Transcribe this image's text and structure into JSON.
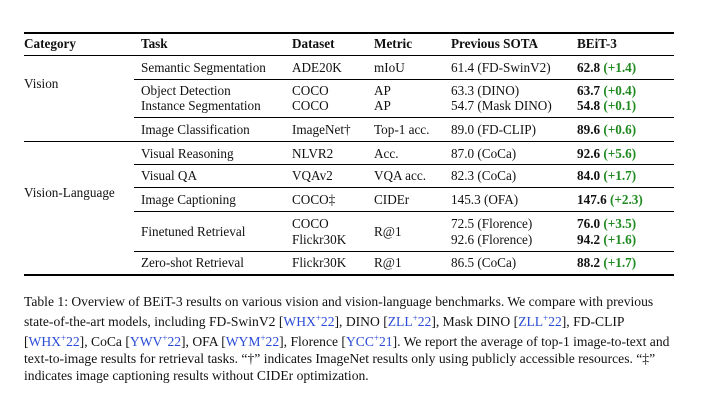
{
  "table": {
    "headers": {
      "category": "Category",
      "task": "Task",
      "dataset": "Dataset",
      "metric": "Metric",
      "sota": "Previous SOTA",
      "beit": "BEiT-3"
    },
    "categories": {
      "vision": "Vision",
      "vision_language": "Vision-Language"
    },
    "rows": [
      {
        "task": "Semantic Segmentation",
        "dataset": "ADE20K",
        "metric": "mIoU",
        "sota": "61.4 (FD-SwinV2)",
        "score": "62.8",
        "gain": "(+1.4)"
      },
      {
        "task": "Object Detection",
        "dataset": "COCO",
        "metric": "AP",
        "sota": "63.3 (DINO)",
        "score": "63.7",
        "gain": "(+0.4)"
      },
      {
        "task": "Instance Segmentation",
        "dataset": "COCO",
        "metric": "AP",
        "sota": "54.7 (Mask DINO)",
        "score": "54.8",
        "gain": "(+0.1)"
      },
      {
        "task": "Image Classification",
        "dataset": "ImageNet†",
        "metric": "Top-1 acc.",
        "sota": "89.0 (FD-CLIP)",
        "score": "89.6",
        "gain": "(+0.6)"
      },
      {
        "task": "Visual Reasoning",
        "dataset": "NLVR2",
        "metric": "Acc.",
        "sota": "87.0 (CoCa)",
        "score": "92.6",
        "gain": "(+5.6)"
      },
      {
        "task": "Visual QA",
        "dataset": "VQAv2",
        "metric": "VQA acc.",
        "sota": "82.3 (CoCa)",
        "score": "84.0",
        "gain": "(+1.7)"
      },
      {
        "task": "Image Captioning",
        "dataset": "COCO‡",
        "metric": "CIDEr",
        "sota": "145.3 (OFA)",
        "score": "147.6",
        "gain": "(+2.3)"
      },
      {
        "task": "Finetuned Retrieval",
        "dataset": "COCO",
        "metric": "R@1",
        "sota": "72.5 (Florence)",
        "score": "76.0",
        "gain": "(+3.5)"
      },
      {
        "task": "",
        "dataset": "Flickr30K",
        "metric": "",
        "sota": "92.6 (Florence)",
        "score": "94.2",
        "gain": "(+1.6)"
      },
      {
        "task": "Zero-shot Retrieval",
        "dataset": "Flickr30K",
        "metric": "R@1",
        "sota": "86.5 (CoCa)",
        "score": "88.2",
        "gain": "(+1.7)"
      }
    ]
  },
  "caption": {
    "t1": "Table 1: Overview of BEiT-3 results on various vision and vision-language benchmarks. We compare with previous state-of-the-art models, including FD-SwinV2 [",
    "c1": "WHX",
    "s1": "+",
    "y1": "22",
    "t2": "], DINO [",
    "c2": "ZLL",
    "s2": "+",
    "y2": "22",
    "t3": "], Mask DINO [",
    "c3": "ZLL",
    "s3": "+",
    "y3": "22",
    "t4": "], FD-CLIP [",
    "c4": "WHX",
    "s4": "+",
    "y4": "22",
    "t5": "], CoCa [",
    "c5": "YWV",
    "s5": "+",
    "y5": "22",
    "t6": "], OFA [",
    "c6": "WYM",
    "s6": "+",
    "y6": "22",
    "t7": "], Florence [",
    "c7": "YCC",
    "s7": "+",
    "y7": "21",
    "t8": "]. We report the average of top-1 image-to-text and text-to-image results for retrieval tasks. “†” indicates ImageNet results only using publicly accessible resources. “‡” indicates image captioning results without CIDEr optimization."
  }
}
